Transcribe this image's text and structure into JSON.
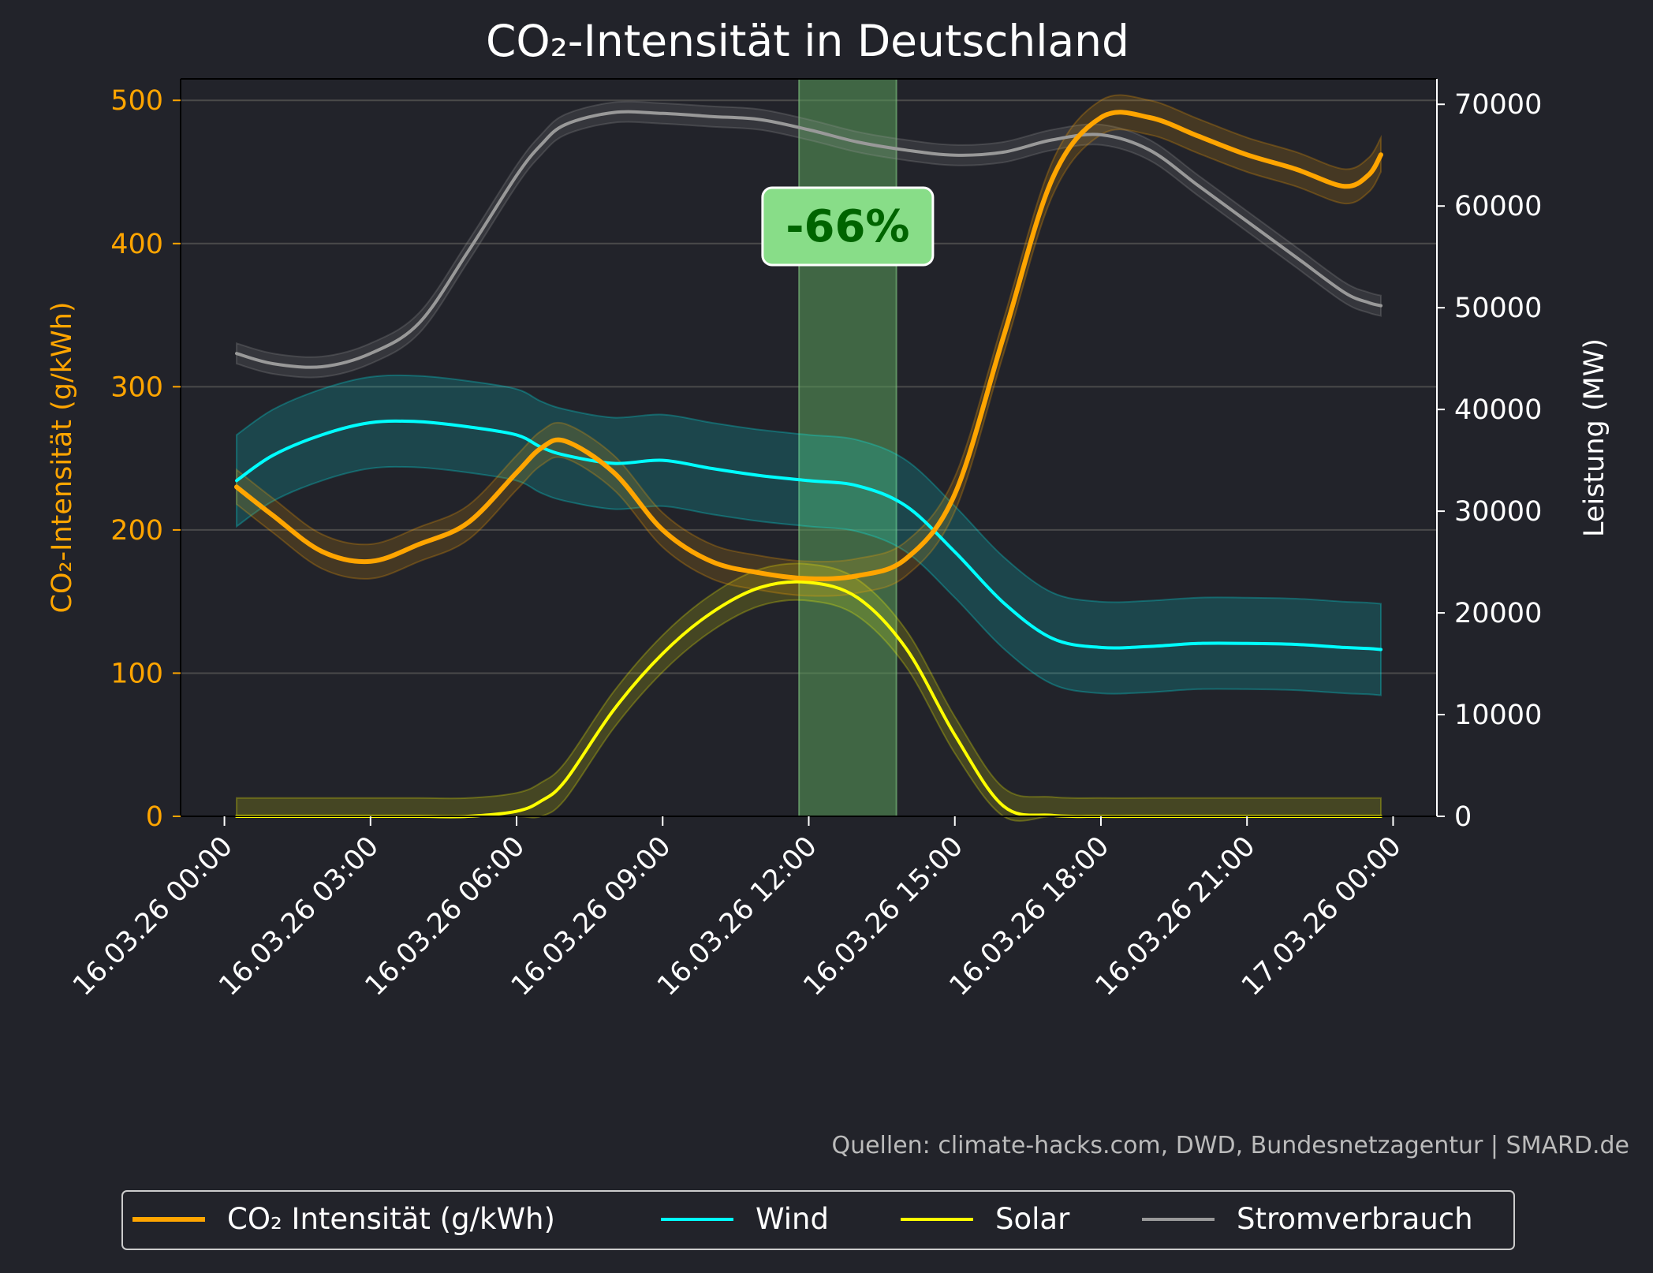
{
  "chart_data": {
    "type": "line",
    "title": "CO₂-Intensität in Deutschland",
    "ylabel_left": "CO₂-Intensität (g/kWh)",
    "ylabel_right": "Leistung (MW)",
    "ylim_left": [
      0,
      515
    ],
    "ylim_right": [
      0,
      72500
    ],
    "yticks_left": [
      "0",
      "100",
      "200",
      "300",
      "400",
      "500"
    ],
    "yticks_right": [
      "0",
      "10000",
      "20000",
      "30000",
      "40000",
      "50000",
      "60000",
      "70000"
    ],
    "x_hours_range": [
      -0.9,
      24.9
    ],
    "xticks": [
      "16.03.26 00:00",
      "16.03.26 03:00",
      "16.03.26 06:00",
      "16.03.26 09:00",
      "16.03.26 12:00",
      "16.03.26 15:00",
      "16.03.26 18:00",
      "16.03.26 21:00",
      "17.03.26 00:00"
    ],
    "x_hours": [
      0.25,
      1,
      2,
      3,
      4,
      5,
      6,
      6.5,
      7,
      8,
      9,
      10,
      11,
      12,
      13,
      14,
      15,
      16,
      17,
      18,
      19,
      20,
      21,
      22,
      23,
      23.5,
      23.75
    ],
    "highlight": {
      "from_hour": 11.8,
      "to_hour": 13.8,
      "label": "-66%",
      "label_value_left": 412
    },
    "grid": "horizontal",
    "legend_position": "bottom",
    "source_note": "Quellen: climate-hacks.com, DWD, Bundesnetzagentur | SMARD.de",
    "colors": {
      "background": "#22232a",
      "co2": "#ffa500",
      "wind": "#00ffff",
      "solar": "#ffff00",
      "load": "#999999",
      "highlight": "#5a9e5a",
      "badge_bg": "#88dd88",
      "badge_text": "#006400",
      "left_axis_text": "#ffa500",
      "right_axis_text": "#ffffff",
      "grid": "#4a4a4a"
    },
    "series": [
      {
        "name": "CO₂ Intensität (g/kWh)",
        "axis": "left",
        "color": "#ffa500",
        "band": 12,
        "values": [
          230,
          210,
          185,
          178,
          190,
          205,
          240,
          257,
          262,
          240,
          200,
          178,
          170,
          166,
          168,
          180,
          225,
          335,
          445,
          488,
          488,
          475,
          462,
          452,
          440,
          448,
          462
        ]
      },
      {
        "name": "Wind",
        "axis": "right",
        "color": "#00ffff",
        "band": 4500,
        "values": [
          33000,
          35500,
          37500,
          38700,
          38800,
          38300,
          37500,
          36300,
          35500,
          34700,
          35000,
          34200,
          33500,
          33000,
          32500,
          30500,
          26000,
          21000,
          17500,
          16600,
          16700,
          17000,
          17000,
          16900,
          16600,
          16500,
          16400
        ]
      },
      {
        "name": "Solar",
        "axis": "right",
        "color": "#ffff00",
        "band": 1800,
        "values": [
          0,
          0,
          0,
          0,
          0,
          0,
          500,
          1500,
          3500,
          10500,
          16000,
          20000,
          22500,
          23000,
          21500,
          16500,
          8000,
          1000,
          100,
          0,
          0,
          0,
          0,
          0,
          0,
          0,
          0
        ]
      },
      {
        "name": "Stromverbrauch",
        "axis": "right",
        "color": "#999999",
        "band": 1000,
        "values": [
          45500,
          44500,
          44200,
          45500,
          48500,
          55500,
          63000,
          66000,
          68000,
          69200,
          69100,
          68800,
          68500,
          67500,
          66300,
          65500,
          65000,
          65300,
          66500,
          67000,
          65500,
          62000,
          58500,
          55000,
          51500,
          50500,
          50200
        ]
      }
    ]
  }
}
